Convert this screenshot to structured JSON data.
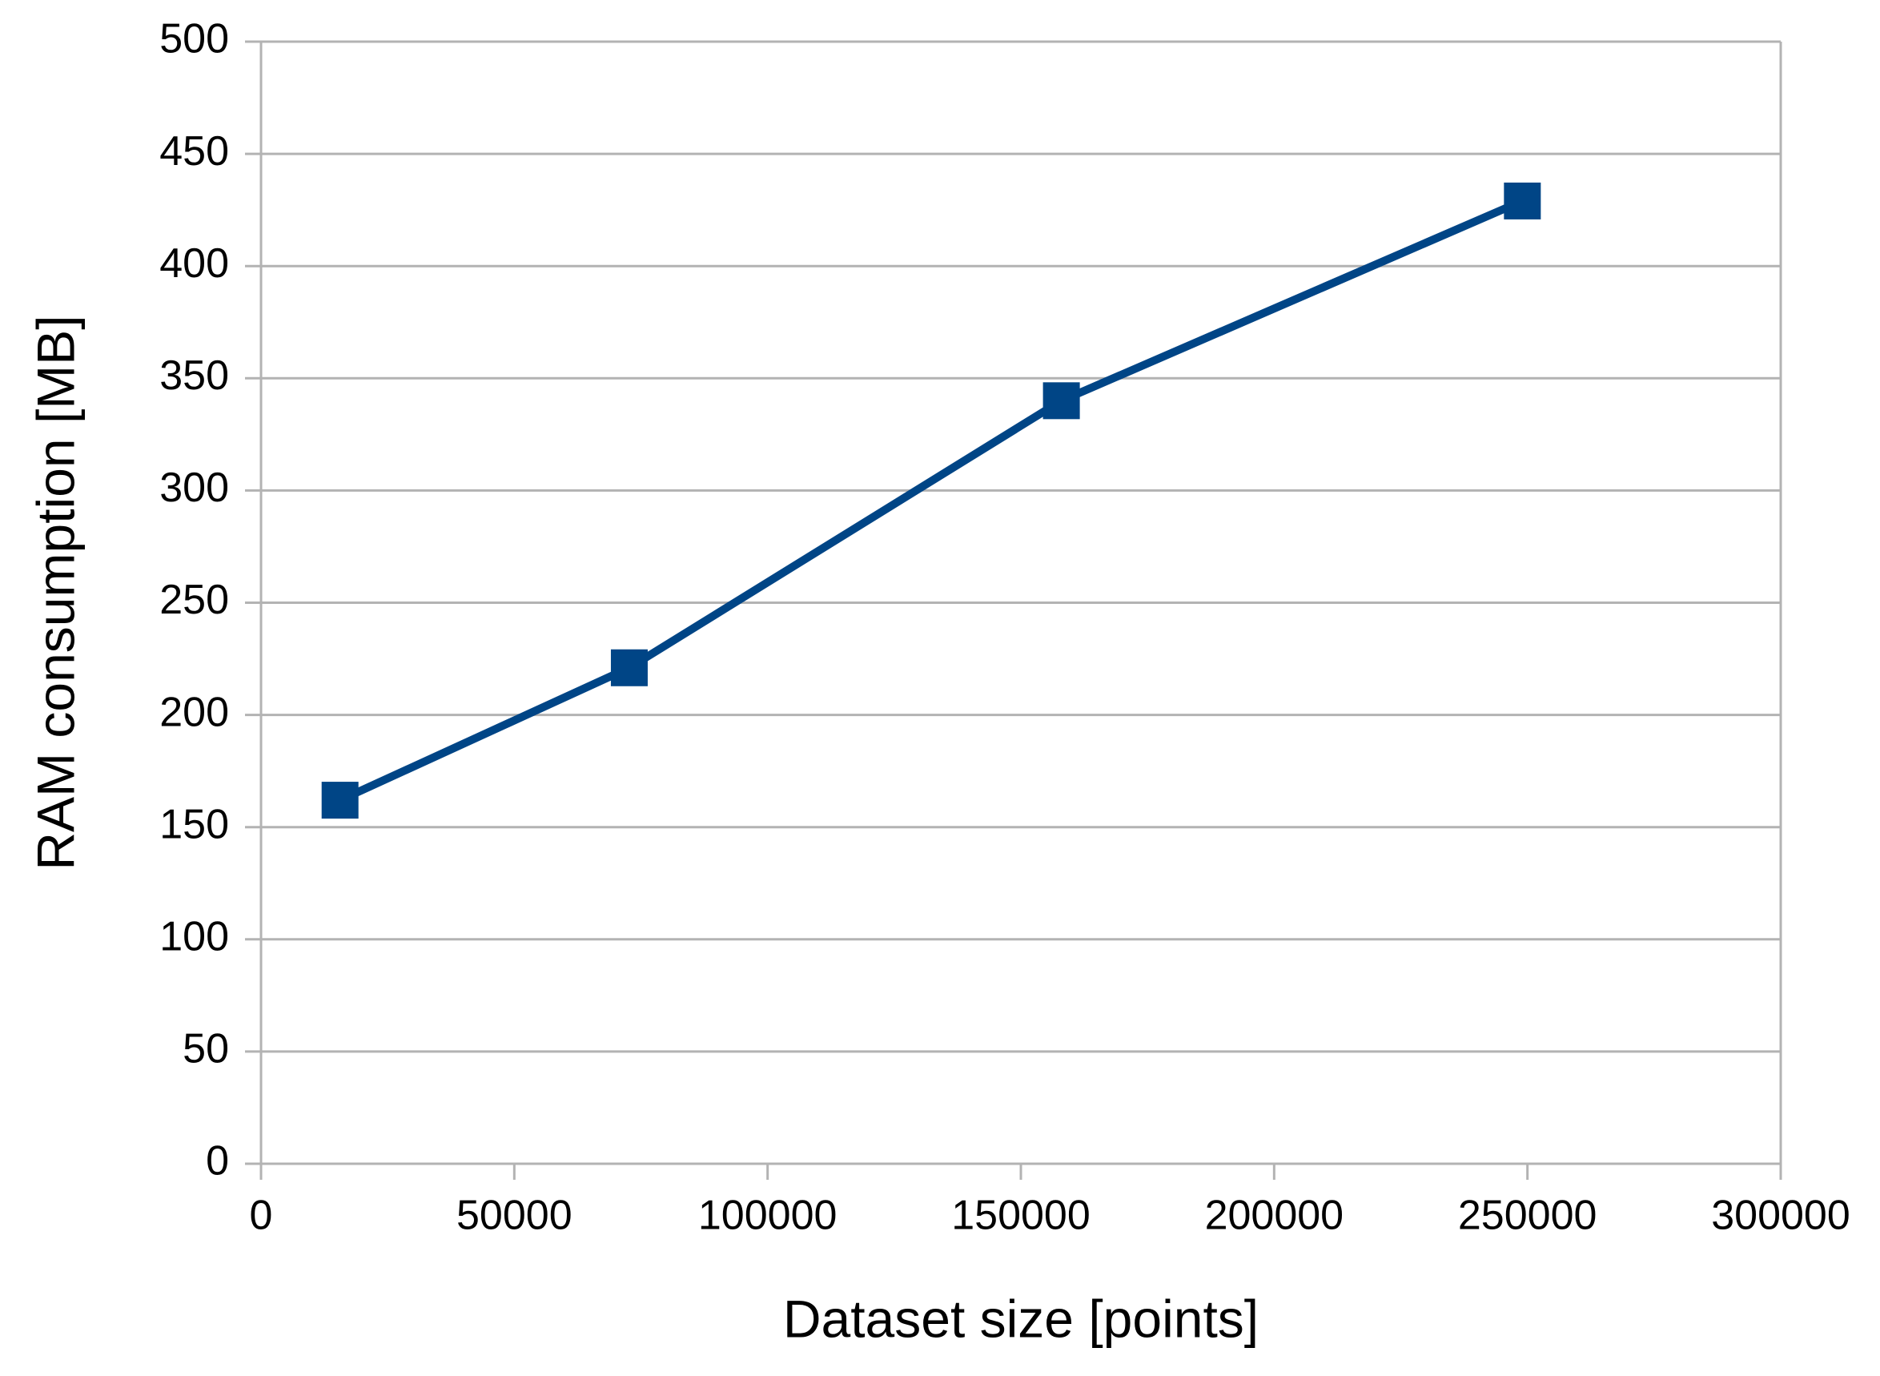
{
  "chart_data": {
    "type": "line",
    "x_label": "Dataset size [points]",
    "y_label": "RAM consumption [MB]",
    "series": [
      {
        "color": "#004586",
        "x": [
          15600,
          72700,
          158000,
          249000
        ],
        "values": [
          162,
          221,
          340,
          429
        ]
      }
    ],
    "xlim": [
      0,
      300000
    ],
    "xticks": [
      0,
      50000,
      100000,
      150000,
      200000,
      250000,
      300000
    ],
    "ylim": [
      0,
      500
    ],
    "yticks": [
      0,
      50,
      100,
      150,
      200,
      250,
      300,
      350,
      400,
      450,
      500
    ],
    "grid": true
  }
}
